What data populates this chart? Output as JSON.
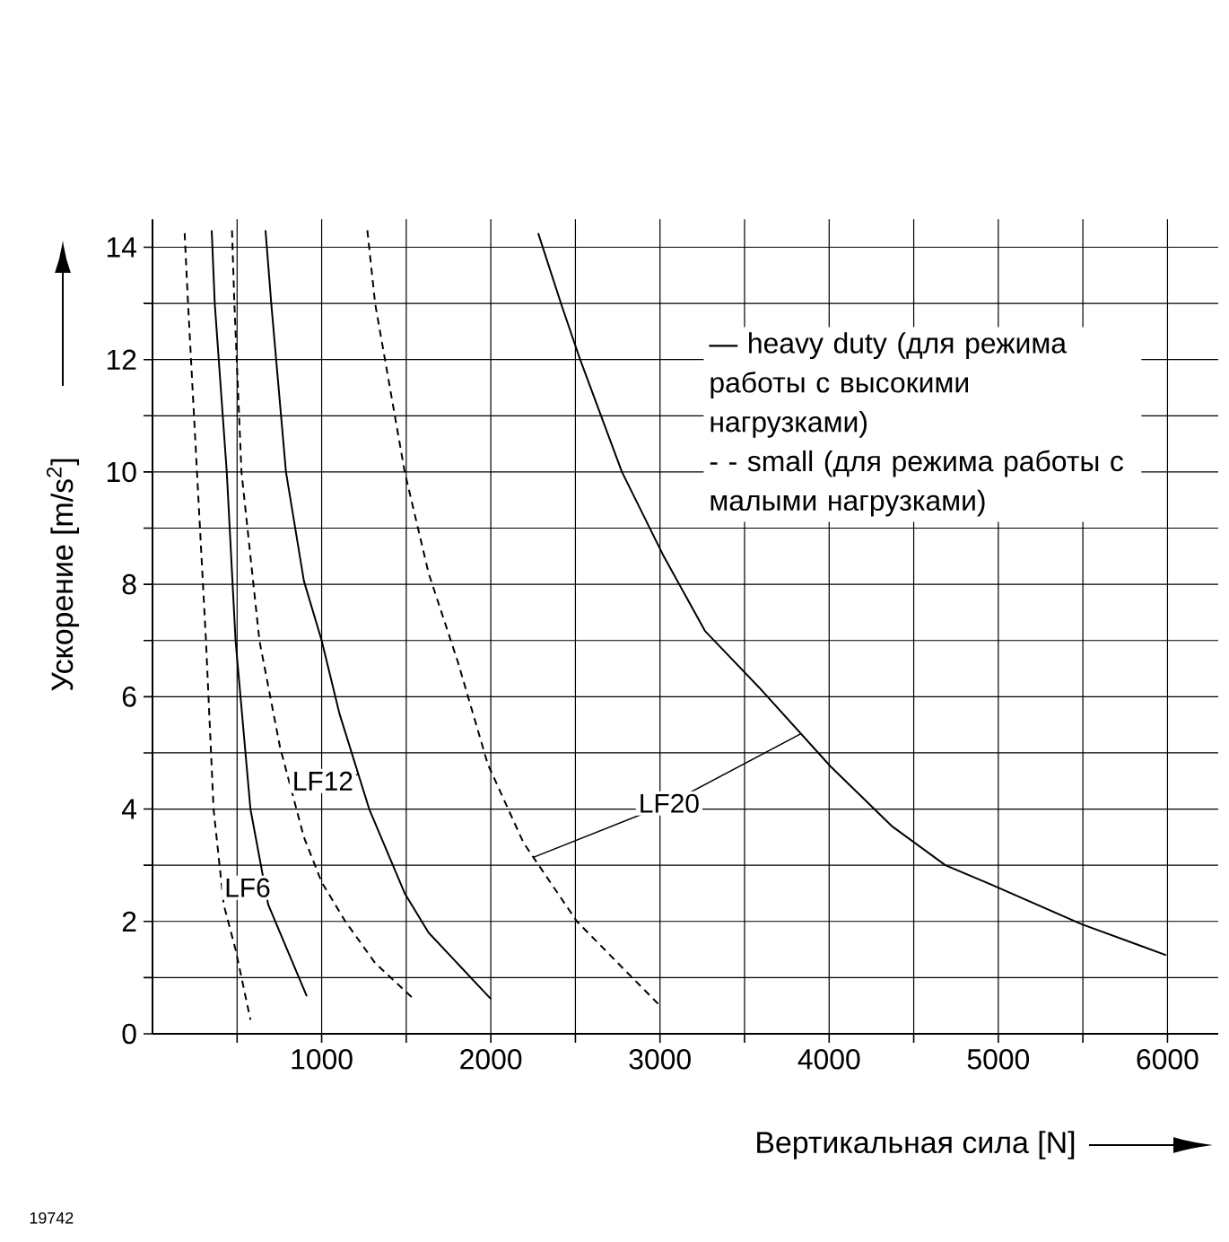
{
  "chart_data": {
    "type": "line",
    "xlabel": "Вертикальная сила [N]",
    "ylabel": "Ускорение [m/s$^{2}$]",
    "xlim": [
      0,
      6300
    ],
    "ylim": [
      0,
      14.5
    ],
    "xticks": [
      {
        "value": 500,
        "label": null
      },
      1000,
      {
        "value": 1500,
        "label": null
      },
      2000,
      {
        "value": 2500,
        "label": null
      },
      3000,
      {
        "value": 3500,
        "label": null
      },
      4000,
      {
        "value": 4500,
        "label": null
      },
      5000,
      {
        "value": 5500,
        "label": null
      },
      6000
    ],
    "yticks": [
      0,
      {
        "value": 1,
        "label": null
      },
      2,
      {
        "value": 3,
        "label": null
      },
      4,
      {
        "value": 5,
        "label": null
      },
      6,
      {
        "value": 7,
        "label": null
      },
      8,
      {
        "value": 9,
        "label": null
      },
      10,
      {
        "value": 11,
        "label": null
      },
      12,
      {
        "value": 13,
        "label": null
      },
      14
    ],
    "grid": true,
    "marker": "none",
    "series": [
      {
        "color": "#000000",
        "line_style": "dashed",
        "x": [
          190,
          210,
          263,
          316,
          361,
          421,
          491,
          579
        ],
        "values": [
          14.25,
          13,
          10,
          7,
          4,
          2.3,
          1.5,
          0.25
        ]
      },
      {
        "color": "#000000",
        "line_style": "solid",
        "x": [
          350,
          368,
          439,
          491,
          579,
          684,
          912
        ],
        "values": [
          14.3,
          13,
          10,
          7,
          4,
          2.3,
          0.67
        ]
      },
      {
        "color": "#000000",
        "line_style": "dashed",
        "x": [
          470,
          484,
          526,
          632,
          754,
          895,
          1000,
          1140,
          1316,
          1544
        ],
        "values": [
          14.3,
          13,
          10,
          7,
          5.1,
          3.5,
          2.7,
          2,
          1.26,
          0.62
        ]
      },
      {
        "color": "#000000",
        "line_style": "solid",
        "x": [
          668,
          702,
          789,
          895,
          1000,
          1105,
          1281,
          1491,
          1632,
          2000
        ],
        "values": [
          14.3,
          13,
          10,
          8.06,
          7,
          5.7,
          4,
          2.5,
          1.8,
          0.62
        ]
      },
      {
        "color": "#000000",
        "line_style": "dashed",
        "x": [
          1270,
          1316,
          1491,
          1632,
          1807,
          1982,
          2193,
          2509,
          2754,
          3000
        ],
        "values": [
          14.3,
          13,
          10,
          8.2,
          6.6,
          4.8,
          3.4,
          2,
          1.25,
          0.5
        ]
      },
      {
        "color": "#000000",
        "line_style": "solid",
        "x": [
          2280,
          2418,
          2528,
          2775,
          3022,
          3266,
          3584,
          4008,
          4369,
          4687,
          4963,
          5493,
          5992
        ],
        "values": [
          14.25,
          12.97,
          12,
          10,
          8.5,
          7.17,
          6.17,
          4.76,
          3.7,
          3,
          2.65,
          1.95,
          1.4
        ]
      }
    ],
    "annotations": [
      "— heavy duty (для режима работы с высокими нагрузками)",
      "- - small (для режима работы с малыми нагрузками)",
      "19742",
      {
        "text": "LF6",
        "x": 562,
        "y": 2.6
      },
      {
        "text": "LF12",
        "x": 1007,
        "y": 4.5
      },
      {
        "text": "LF20",
        "x": 3054,
        "y": 4.1
      }
    ]
  }
}
